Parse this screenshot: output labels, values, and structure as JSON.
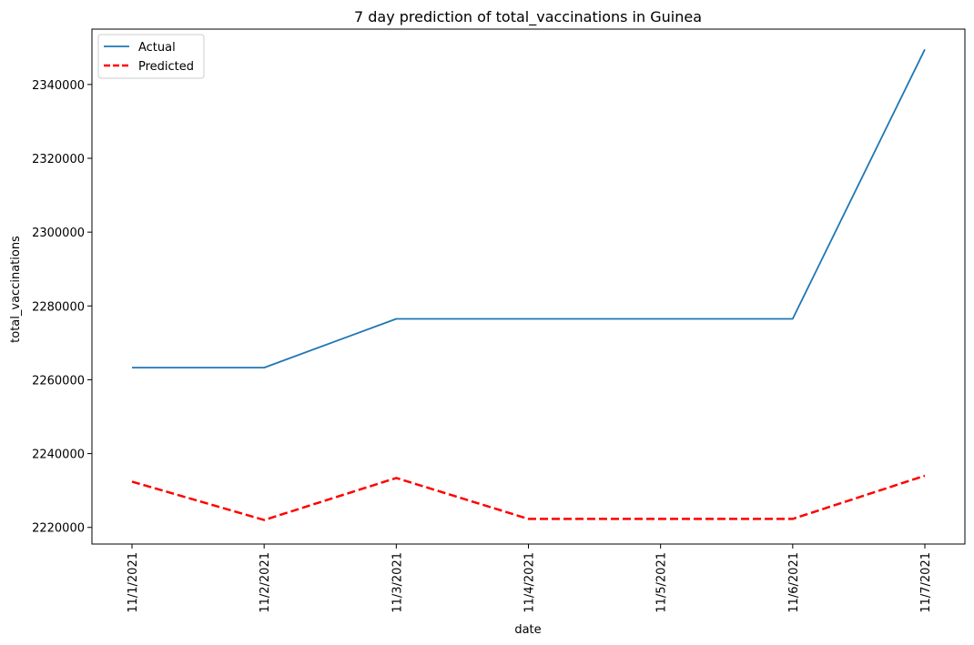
{
  "chart_data": {
    "type": "line",
    "title": "7 day prediction of total_vaccinations in Guinea",
    "xlabel": "date",
    "ylabel": "total_vaccinations",
    "categories": [
      "11/1/2021",
      "11/2/2021",
      "11/3/2021",
      "11/4/2021",
      "11/5/2021",
      "11/6/2021",
      "11/7/2021"
    ],
    "y_ticks": [
      2220000,
      2240000,
      2260000,
      2280000,
      2300000,
      2320000,
      2340000
    ],
    "ylim": [
      2215500,
      2355000
    ],
    "grid": false,
    "legend_position": "top-left",
    "series": [
      {
        "name": "Actual",
        "color": "#1f77b4",
        "style": "solid",
        "values": [
          2263300,
          2263300,
          2276500,
          2276500,
          2276500,
          2276500,
          2349500
        ]
      },
      {
        "name": "Predicted",
        "color": "#ff0000",
        "style": "dashed",
        "values": [
          2232400,
          2222000,
          2233400,
          2222300,
          2222300,
          2222300,
          2234000
        ]
      }
    ]
  }
}
